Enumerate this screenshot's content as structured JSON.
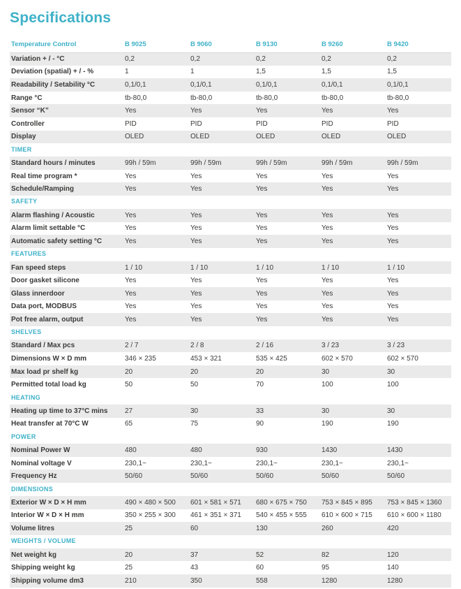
{
  "page_title": "Specifications",
  "colors": {
    "accent": "#3eb1c8",
    "stripe": "#eaeaea",
    "text": "#3a3a39"
  },
  "table": {
    "header": {
      "label": "Temperature Control",
      "models": [
        "B 9025",
        "B 9060",
        "B 9130",
        "B 9260",
        "B 9420"
      ]
    },
    "sections": [
      {
        "name": null,
        "rows": [
          {
            "label": "Variation + / - °C",
            "values": [
              "0,2",
              "0,2",
              "0,2",
              "0,2",
              "0,2"
            ]
          },
          {
            "label": "Deviation (spatial) + / - %",
            "values": [
              "1",
              "1",
              "1,5",
              "1,5",
              "1,5"
            ]
          },
          {
            "label": "Readability / Setability °C",
            "values": [
              "0,1/0,1",
              "0,1/0,1",
              "0,1/0,1",
              "0,1/0,1",
              "0,1/0,1"
            ]
          },
          {
            "label": "Range °C",
            "values": [
              "tb-80,0",
              "tb-80,0",
              "tb-80,0",
              "tb-80,0",
              "tb-80,0"
            ]
          },
          {
            "label": "Sensor “K”",
            "values": [
              "Yes",
              "Yes",
              "Yes",
              "Yes",
              "Yes"
            ]
          },
          {
            "label": "Controller",
            "values": [
              "PID",
              "PID",
              "PID",
              "PID",
              "PID"
            ]
          },
          {
            "label": "Display",
            "values": [
              "OLED",
              "OLED",
              "OLED",
              "OLED",
              "OLED"
            ]
          }
        ]
      },
      {
        "name": "TIMER",
        "rows": [
          {
            "label": "Standard hours / minutes",
            "values": [
              "99h / 59m",
              "99h / 59m",
              "99h / 59m",
              "99h / 59m",
              "99h / 59m"
            ]
          },
          {
            "label": "Real time program *",
            "values": [
              "Yes",
              "Yes",
              "Yes",
              "Yes",
              "Yes"
            ]
          },
          {
            "label": "Schedule/Ramping",
            "values": [
              "Yes",
              "Yes",
              "Yes",
              "Yes",
              "Yes"
            ]
          }
        ]
      },
      {
        "name": "SAFETY",
        "rows": [
          {
            "label": "Alarm flashing / Acoustic",
            "values": [
              "Yes",
              "Yes",
              "Yes",
              "Yes",
              "Yes"
            ]
          },
          {
            "label": "Alarm limit settable °C",
            "values": [
              "Yes",
              "Yes",
              "Yes",
              "Yes",
              "Yes"
            ]
          },
          {
            "label": "Automatic safety setting °C",
            "values": [
              "Yes",
              "Yes",
              "Yes",
              "Yes",
              "Yes"
            ]
          }
        ]
      },
      {
        "name": "FEATURES",
        "rows": [
          {
            "label": "Fan speed steps",
            "values": [
              "1 / 10",
              "1 / 10",
              "1 / 10",
              "1 / 10",
              "1 / 10"
            ]
          },
          {
            "label": "Door gasket silicone",
            "values": [
              "Yes",
              "Yes",
              "Yes",
              "Yes",
              "Yes"
            ]
          },
          {
            "label": "Glass innerdoor",
            "values": [
              "Yes",
              "Yes",
              "Yes",
              "Yes",
              "Yes"
            ]
          },
          {
            "label": "Data port, MODBUS",
            "values": [
              "Yes",
              "Yes",
              "Yes",
              "Yes",
              "Yes"
            ]
          },
          {
            "label": "Pot free alarm, output",
            "values": [
              "Yes",
              "Yes",
              "Yes",
              "Yes",
              "Yes"
            ]
          }
        ]
      },
      {
        "name": "SHELVES",
        "rows": [
          {
            "label": "Standard /  Max pcs",
            "values": [
              "2 / 7",
              "2 / 8",
              "2 / 16",
              "3 / 23",
              "3 / 23"
            ]
          },
          {
            "label": "Dimensions W × D mm",
            "values": [
              "346 × 235",
              "453 × 321",
              "535 × 425",
              "602 × 570",
              "602 × 570"
            ]
          },
          {
            "label": "Max load pr shelf kg",
            "values": [
              "20",
              "20",
              "20",
              "30",
              "30"
            ]
          },
          {
            "label": "Permitted total load kg",
            "values": [
              "50",
              "50",
              "70",
              "100",
              "100"
            ]
          }
        ]
      },
      {
        "name": "HEATING",
        "rows": [
          {
            "label": "Heating up time to 37°C mins",
            "values": [
              "27",
              "30",
              "33",
              "30",
              "30"
            ]
          },
          {
            "label": "Heat transfer at 70°C W",
            "values": [
              "65",
              "75",
              "90",
              "190",
              "190"
            ]
          }
        ]
      },
      {
        "name": "POWER",
        "rows": [
          {
            "label": "Nominal Power W",
            "values": [
              "480",
              "480",
              "930",
              "1430",
              "1430"
            ]
          },
          {
            "label": "Nominal voltage V",
            "values": [
              "230,1~",
              "230,1~",
              "230,1~",
              "230,1~",
              "230,1~"
            ]
          },
          {
            "label": "Frequency Hz",
            "values": [
              "50/60",
              "50/60",
              "50/60",
              "50/60",
              "50/60"
            ]
          }
        ]
      },
      {
        "name": "DIMENSIONS",
        "rows": [
          {
            "label": "Exterior W × D × H mm",
            "values": [
              "490 × 480 × 500",
              "601 × 581 × 571",
              "680 × 675 × 750",
              "753 × 845 × 895",
              "753 × 845 × 1360"
            ]
          },
          {
            "label": "Interior W × D × H mm",
            "values": [
              "350 × 255 × 300",
              "461 × 351 × 371",
              "540 × 455 × 555",
              "610 × 600 × 715",
              "610 × 600 × 1180"
            ]
          },
          {
            "label": "Volume litres",
            "values": [
              "25",
              "60",
              "130",
              "260",
              "420"
            ]
          }
        ]
      },
      {
        "name": "WEIGHTS / VOLUME",
        "rows": [
          {
            "label": "Net weight kg",
            "values": [
              "20",
              "37",
              "52",
              "82",
              "120"
            ]
          },
          {
            "label": "Shipping weight kg",
            "values": [
              "25",
              "43",
              "60",
              "95",
              "140"
            ]
          },
          {
            "label": "Shipping volume dm3",
            "values": [
              "210",
              "350",
              "558",
              "1280",
              "1280"
            ]
          }
        ]
      }
    ]
  }
}
